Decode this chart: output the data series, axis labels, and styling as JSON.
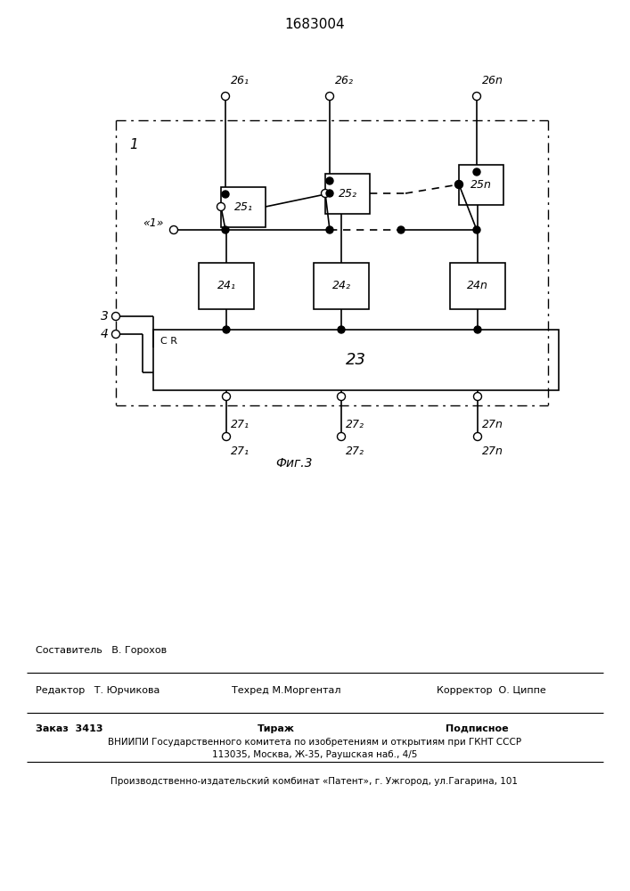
{
  "title": "1683004",
  "fig_label": "Фиг.3",
  "background_color": "#ffffff",
  "footer": {
    "line1_left": "Редактор   Т. Юрчикова",
    "line1_center": "Составитель   В. Горохов",
    "line1_center2": "Техред М.Моргентал",
    "line1_right": "Корректор  О. Циппе",
    "line2_left": "Заказ  3413",
    "line2_center": "Тираж",
    "line2_right": "Подписное",
    "line3": "ВНИИПИ Государственного комитета по изобретениям и открытиям при ГКНТ СССР",
    "line4": "113035, Москва, Ж-35, Раушская наб., 4/5",
    "line5": "Производственно-издательский комбинат «Патент», г. Ужгород, ул.Гагарина, 101"
  }
}
